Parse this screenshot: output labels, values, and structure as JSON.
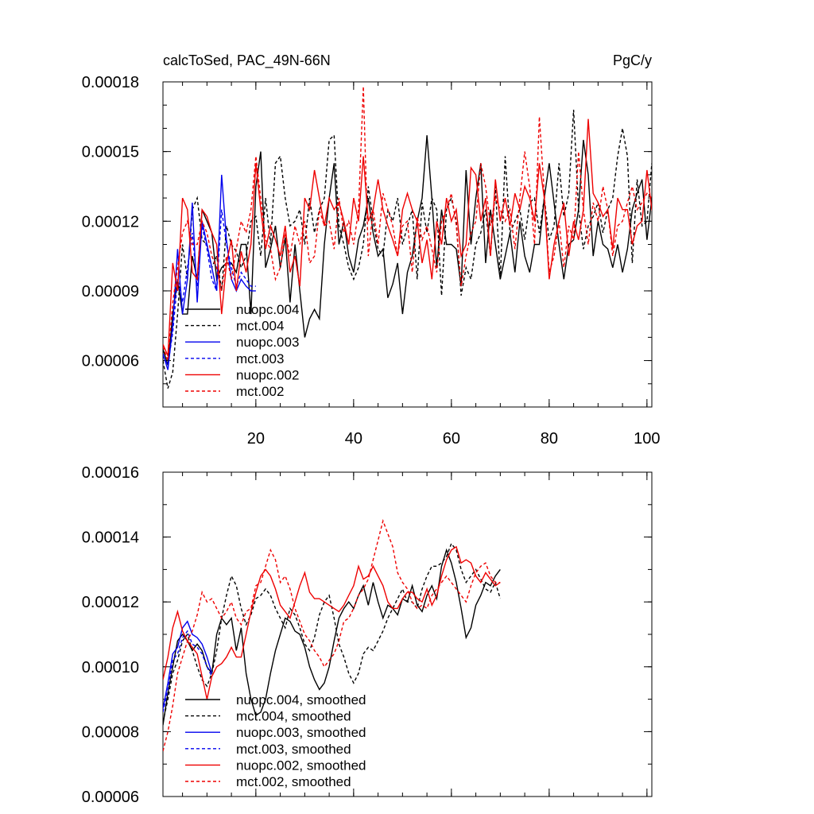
{
  "chart_data": [
    {
      "type": "line",
      "title": "calcToSed, PAC_49N-66N",
      "units": "PgC/y",
      "xlim": [
        1,
        101
      ],
      "ylim": [
        4e-05,
        0.00018
      ],
      "xticks": [
        20,
        40,
        60,
        80,
        100
      ],
      "xtick_labels": [
        "20",
        "40",
        "60",
        "80",
        "100"
      ],
      "yticks": [
        6e-05,
        9e-05,
        0.00012,
        0.00015,
        0.00018
      ],
      "ytick_labels": [
        "0.00006",
        "0.00009",
        "0.00012",
        "0.00015",
        "0.00018"
      ],
      "legend_position": "bottom-left",
      "series": [
        {
          "name": "nuopc.004",
          "color": "#000000",
          "dash": "solid",
          "x_start": 1,
          "values": [
            6.5e-05,
            5.8e-05,
            8e-05,
            9.5e-05,
            8e-05,
            8e-05,
            0.000105,
            9.5e-05,
            0.000125,
            0.00012,
            0.000115,
            9.5e-05,
            0.0001,
            0.000102,
            0.000102,
            9.8e-05,
            0.00011,
            0.00011,
            8e-05,
            0.000135,
            0.00015,
            0.0001,
            0.000108,
            0.000118,
            0.0001,
            0.000113,
            8.5e-05,
            0.00011,
            9e-05,
            7e-05,
            7.8e-05,
            8.2e-05,
            7.8e-05,
            0.00011,
            0.00013,
            0.000145,
            0.00011,
            0.00012,
            0.000105,
            9.8e-05,
            0.000112,
            0.000118,
            0.00013,
            0.000115,
            0.000105,
            0.000108,
            8.7e-05,
            9.3e-05,
            0.000102,
            8e-05,
            9.8e-05,
            0.000105,
            0.00012,
            0.00013,
            0.000157,
            0.00013,
            0.0001,
            0.000125,
            0.00011,
            0.00011,
            0.000108,
            9.2e-05,
            0.000142,
            0.00011,
            0.00013,
            0.000145,
            0.000102,
            0.000125,
            0.00011,
            9.5e-05,
            0.000105,
            0.000115,
            9.8e-05,
            0.00012,
            0.000105,
            9.8e-05,
            0.00011,
            0.00011,
            0.00013,
            0.000145,
            0.000128,
            0.00011,
            9.5e-05,
            0.00011,
            0.000112,
            0.000125,
            0.000155,
            0.00014,
            0.000105,
            0.00012,
            0.00011,
            0.000108,
            0.0001,
            0.00011,
            9.8e-05,
            0.000108,
            0.000125,
            0.000132,
            0.000138,
            0.000112,
            0.00013,
            0.00015
          ]
        },
        {
          "name": "mct.004",
          "color": "#000000",
          "dash": "dashed",
          "x_start": 1,
          "values": [
            6e-05,
            4.8e-05,
            5.5e-05,
            8e-05,
            0.00011,
            9.5e-05,
            0.000125,
            0.00013,
            0.000112,
            0.00011,
            0.0001,
            0.000105,
            9e-05,
            0.000118,
            0.00011,
            0.000107,
            0.0001,
            0.000105,
            0.00012,
            0.000122,
            0.000105,
            0.00013,
            0.00011,
            0.000145,
            0.000148,
            0.00013,
            0.000118,
            0.00012,
            0.000125,
            0.00011,
            0.00013,
            0.000115,
            0.000125,
            0.00013,
            0.000155,
            0.000157,
            0.000118,
            0.00011,
            0.0001,
            9.5e-05,
            0.0001,
            0.00011,
            0.000135,
            0.00012,
            0.000108,
            0.000105,
            0.000125,
            0.00012,
            0.00013,
            0.00011,
            0.000118,
            0.000125,
            9.5e-05,
            0.000128,
            0.000115,
            0.00013,
            0.000125,
            8.8e-05,
            0.000125,
            0.00013,
            0.00012,
            8.8e-05,
            0.0001,
            9.5e-05,
            0.00011,
            0.000115,
            0.000125,
            0.000105,
            0.000135,
            9.5e-05,
            0.000148,
            0.000115,
            0.00012,
            0.000125,
            0.000112,
            0.000128,
            0.00013,
            0.000115,
            0.00013,
            0.000112,
            0.000118,
            0.000145,
            0.000122,
            0.000132,
            0.000168,
            0.000125,
            0.000108,
            0.000118,
            0.000122,
            0.000128,
            0.000115,
            0.000125,
            0.00013,
            0.000148,
            0.00016,
            0.000148,
            0.000102,
            0.000138,
            0.000118,
            0.00012,
            0.000145,
            0.0001
          ]
        },
        {
          "name": "nuopc.003",
          "color": "#0000ee",
          "dash": "solid",
          "x_start": 1,
          "values": [
            6.3e-05,
            5.6e-05,
            7.5e-05,
            0.000108,
            8e-05,
            9.5e-05,
            0.000128,
            8.5e-05,
            0.00012,
            0.00011,
            0.0001,
            9e-05,
            0.00014,
            0.000112,
            9.5e-05,
            9e-05,
            9.5e-05,
            9.2e-05,
            9e-05,
            9e-05
          ]
        },
        {
          "name": "mct.003",
          "color": "#0000ee",
          "dash": "dashed",
          "x_start": 1,
          "values": [
            6.2e-05,
            5.8e-05,
            7.2e-05,
            9.5e-05,
            8.5e-05,
            0.0001,
            0.000115,
            9.2e-05,
            0.000118,
            0.000108,
            9.5e-05,
            9e-05,
            0.000125,
            0.00011,
            0.0001,
            9.2e-05,
            9.8e-05,
            9.5e-05,
            9.2e-05,
            9.2e-05
          ]
        },
        {
          "name": "nuopc.002",
          "color": "#ee0000",
          "dash": "solid",
          "x_start": 1,
          "values": [
            6.7e-05,
            6.2e-05,
            0.000102,
            9e-05,
            0.00013,
            0.000125,
            9.8e-05,
            9.5e-05,
            0.000125,
            0.000122,
            0.000115,
            0.00011,
            8e-05,
            0.000102,
            0.000112,
            9e-05,
            0.000107,
            9.8e-05,
            0.00011,
            0.000145,
            0.000125,
            0.000108,
            0.000118,
            0.000112,
            0.000105,
            0.000118,
            9.8e-05,
            0.000105,
            9.2e-05,
            0.00013,
            0.000125,
            0.000142,
            0.00013,
            0.000118,
            0.00013,
            0.000125,
            0.000128,
            0.00012,
            0.00011,
            0.00013,
            0.00012,
            0.000148,
            0.00012,
            0.000125,
            0.000138,
            0.000125,
            0.000118,
            0.000112,
            0.000105,
            0.000125,
            0.000132,
            0.000125,
            0.00012,
            0.000102,
            0.000112,
            9.5e-05,
            0.00012,
            0.00011,
            0.00013,
            0.00012,
            0.000125,
            0.000105,
            0.00011,
            0.000143,
            0.00014,
            0.00012,
            0.00013,
            0.000105,
            0.000138,
            0.00012,
            0.00013,
            0.000118,
            0.000132,
            0.000125,
            0.000135,
            0.00013,
            0.00012,
            0.000145,
            0.00013,
            9.5e-05,
            0.00011,
            0.00012,
            0.000128,
            0.000105,
            0.00012,
            0.000112,
            0.000125,
            0.000164,
            0.000132,
            0.000128,
            0.000122,
            0.000125,
            0.000108,
            0.00013,
            0.000125,
            0.000125,
            0.00011,
            0.000118,
            0.00012,
            0.000142,
            0.000125,
            0.00012
          ]
        },
        {
          "name": "mct.002",
          "color": "#ee0000",
          "dash": "dashed",
          "x_start": 1,
          "values": [
            6.6e-05,
            6e-05,
            8.5e-05,
            0.0001,
            0.000115,
            0.00012,
            0.00011,
            0.00011,
            0.00012,
            0.000115,
            0.000105,
            0.0001,
            9e-05,
            0.000105,
            9.5e-05,
            0.000108,
            0.00012,
            0.000115,
            0.000125,
            0.000148,
            0.00013,
            0.000112,
            0.000108,
            9.5e-05,
            0.0001,
            0.000115,
            0.000105,
            0.000118,
            0.00011,
            0.00012,
            0.000102,
            0.000105,
            0.000125,
            0.000118,
            0.00012,
            0.000108,
            0.00013,
            0.000115,
            0.00012,
            0.00011,
            0.000125,
            0.000178,
            0.000105,
            0.000125,
            0.00011,
            0.000132,
            0.000125,
            0.000118,
            0.000105,
            0.000118,
            0.00012,
            9.8e-05,
            0.000122,
            0.000112,
            0.000118,
            0.000108,
            9.8e-05,
            0.00012,
            0.000125,
            0.000132,
            0.000118,
            9.2e-05,
            0.000105,
            0.000115,
            0.00012,
            0.000145,
            0.000135,
            0.000118,
            0.00013,
            0.000125,
            0.00012,
            0.000125,
            0.000108,
            0.00013,
            0.00015,
            0.000135,
            0.00011,
            0.000165,
            0.000132,
            9.8e-05,
            0.000105,
            0.00012,
            0.0001,
            0.000118,
            0.000112,
            0.00015,
            0.000125,
            0.00011,
            0.000128,
            0.00012,
            0.000135,
            0.000125,
            0.000105,
            0.000118,
            0.00012,
            0.000128,
            0.000135,
            0.000125,
            0.000128,
            0.000132,
            0.00013,
            0.000128
          ]
        }
      ]
    },
    {
      "type": "line",
      "title": "",
      "xlim": [
        1,
        101
      ],
      "ylim": [
        6e-05,
        0.00016
      ],
      "xticks": [
        20,
        40,
        60,
        80,
        100
      ],
      "xtick_labels": [
        "",
        "",
        "",
        "",
        ""
      ],
      "yticks": [
        6e-05,
        8e-05,
        0.0001,
        0.00012,
        0.00014,
        0.00016
      ],
      "ytick_labels": [
        "0.00006",
        "0.00008",
        "0.00010",
        "0.00012",
        "0.00014",
        "0.00016"
      ],
      "legend_position": "bottom-left",
      "series": [
        {
          "name": "nuopc.004, smoothed",
          "color": "#000000",
          "dash": "solid",
          "x_start": 1,
          "values": [
            8.2e-05,
            9.2e-05,
            0.0001,
            0.000108,
            0.00011,
            0.000108,
            0.000105,
            0.000107,
            0.000105,
            0.0001,
            9.8e-05,
            0.00011,
            0.000115,
            0.000113,
            0.000115,
            0.000105,
            0.000112,
            9.8e-05,
            9e-05,
            8.5e-05,
            8.6e-05,
            9e-05,
            9.8e-05,
            0.000105,
            0.00011,
            0.000115,
            0.000114,
            0.000111,
            0.00011,
            0.000106,
            0.0001,
            9.6e-05,
            9.3e-05,
            9.5e-05,
            0.0001,
            0.000108,
            0.000115,
            0.000118,
            0.00012,
            0.000118,
            0.000122,
            0.000125,
            0.000119,
            0.000126,
            0.00012,
            0.000115,
            0.000119,
            0.000118,
            0.000116,
            0.000121,
            0.00012,
            0.000125,
            0.000119,
            0.000117,
            0.000122,
            0.000125,
            0.000121,
            0.000131,
            0.000136,
            0.000132,
            0.000126,
            0.000118,
            0.000109,
            0.000112,
            0.000119,
            0.000122,
            0.000126,
            0.000125,
            0.000128,
            0.00013
          ]
        },
        {
          "name": "mct.004, smoothed",
          "color": "#000000",
          "dash": "dashed",
          "x_start": 1,
          "values": [
            8.3e-05,
            9e-05,
            9.8e-05,
            0.000102,
            0.000108,
            0.00011,
            0.000105,
            0.0001,
            9.6e-05,
            9.4e-05,
            9.8e-05,
            0.000105,
            0.000115,
            0.000122,
            0.000128,
            0.000125,
            0.000118,
            0.000113,
            0.000116,
            0.000121,
            0.000122,
            0.000124,
            0.000122,
            0.000118,
            0.000115,
            0.000112,
            0.000118,
            0.000116,
            0.000112,
            0.000107,
            0.000105,
            0.000109,
            0.000116,
            0.00012,
            0.000122,
            0.000115,
            0.000107,
            0.000103,
            9.8e-05,
            9.5e-05,
            9.8e-05,
            0.000104,
            0.000106,
            0.000105,
            0.000108,
            0.000111,
            0.000115,
            0.000118,
            0.000121,
            0.000124,
            0.00012,
            0.00012,
            0.000118,
            0.000124,
            0.000128,
            0.000131,
            0.000131,
            0.000132,
            0.000134,
            0.000138,
            0.000136,
            0.00013,
            0.000126,
            0.000128,
            0.00013,
            0.000127,
            0.000124,
            0.000123,
            0.000126,
            0.000121
          ]
        },
        {
          "name": "nuopc.003, smoothed",
          "color": "#0000ee",
          "dash": "solid",
          "x_start": 1,
          "values": [
            8.7e-05,
            9.5e-05,
            0.000104,
            0.000106,
            0.000112,
            0.000114,
            0.00011,
            0.000109,
            0.000107,
            0.000103,
            9.8e-05
          ]
        },
        {
          "name": "mct.003, smoothed",
          "color": "#0000ee",
          "dash": "dashed",
          "x_start": 1,
          "values": [
            8.6e-05,
            9.3e-05,
            0.000102,
            0.000104,
            0.000109,
            0.000111,
            0.000107,
            0.000106,
            0.000104,
            0.0001,
            9.7e-05
          ]
        },
        {
          "name": "nuopc.002, smoothed",
          "color": "#ee0000",
          "dash": "solid",
          "x_start": 1,
          "values": [
            9.6e-05,
            0.000103,
            0.000112,
            0.000117,
            0.000111,
            0.000108,
            0.000106,
            0.000104,
            9.7e-05,
            9e-05,
            9.7e-05,
            0.0001,
            0.000101,
            0.000103,
            0.000106,
            0.000103,
            0.000103,
            0.00011,
            0.000117,
            0.000123,
            0.000128,
            0.00013,
            0.000128,
            0.000124,
            0.000119,
            0.000117,
            0.000115,
            0.00012,
            0.000125,
            0.000129,
            0.000123,
            0.000121,
            0.000121,
            0.00012,
            0.000119,
            0.000118,
            0.000117,
            0.000119,
            0.000122,
            0.000125,
            0.000131,
            0.000127,
            0.000128,
            0.000131,
            0.000128,
            0.000125,
            0.00012,
            0.000118,
            0.000118,
            0.000121,
            0.000123,
            0.000123,
            0.000121,
            0.00012,
            0.000124,
            0.000119,
            0.000122,
            0.000128,
            0.000133,
            0.000136,
            0.000137,
            0.000132,
            0.000133,
            0.000132,
            0.000128,
            0.000126,
            0.000129,
            0.000127,
            0.000125,
            0.000126
          ]
        },
        {
          "name": "mct.002, smoothed",
          "color": "#ee0000",
          "dash": "dashed",
          "x_start": 1,
          "values": [
            7.4e-05,
            8e-05,
            8.8e-05,
            9.8e-05,
            0.000103,
            0.000108,
            0.000111,
            0.000116,
            0.000123,
            0.00012,
            0.000121,
            0.000118,
            0.000115,
            0.000117,
            0.00012,
            0.000115,
            0.000113,
            0.000117,
            0.000118,
            0.000125,
            0.000126,
            0.000131,
            0.000136,
            0.000133,
            0.000126,
            0.000128,
            0.000124,
            0.000118,
            0.000114,
            0.00011,
            0.000108,
            0.000105,
            0.000103,
            0.0001,
            0.000102,
            0.000104,
            0.000108,
            0.000114,
            0.000115,
            0.000118,
            0.000122,
            0.000124,
            0.000127,
            0.000133,
            0.000139,
            0.000145,
            0.000141,
            0.000137,
            0.000129,
            0.000126,
            0.000124,
            0.00012,
            0.000118,
            0.000119,
            0.000118,
            0.000122,
            0.000124,
            0.000126,
            0.000128,
            0.000126,
            0.000124,
            0.000122,
            0.00012,
            0.000125,
            0.000129,
            0.000131,
            0.000132,
            0.000128,
            0.000126,
            0.000126
          ]
        }
      ]
    }
  ]
}
